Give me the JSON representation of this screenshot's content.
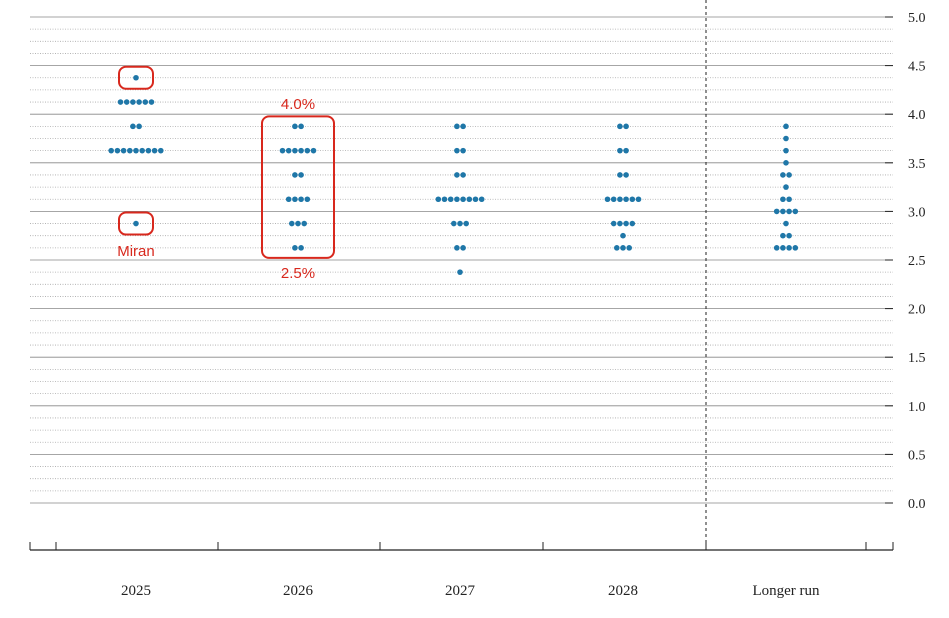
{
  "chart_data": {
    "type": "scatter",
    "title": "",
    "xlabel": "",
    "ylabel": "",
    "ylim": [
      0,
      5
    ],
    "y_ticks": [
      "0.0",
      "0.5",
      "1.0",
      "1.5",
      "2.0",
      "2.5",
      "3.0",
      "3.5",
      "4.0",
      "4.5",
      "5.0"
    ],
    "y_axis_side": "right",
    "gridlines": "dotted every 0.125, solid every 0.5",
    "categories": [
      "2025",
      "2026",
      "2027",
      "2028",
      "Longer run"
    ],
    "dot_color": "#1f77a8",
    "highlight_color": "#d8281d",
    "dots": [
      {
        "category": "2025",
        "groups": [
          {
            "rate": 4.375,
            "count": 1
          },
          {
            "rate": 4.125,
            "count": 6
          },
          {
            "rate": 3.875,
            "count": 2
          },
          {
            "rate": 3.625,
            "count": 9
          },
          {
            "rate": 2.875,
            "count": 1
          }
        ]
      },
      {
        "category": "2026",
        "groups": [
          {
            "rate": 3.875,
            "count": 2
          },
          {
            "rate": 3.625,
            "count": 6
          },
          {
            "rate": 3.375,
            "count": 2
          },
          {
            "rate": 3.125,
            "count": 4
          },
          {
            "rate": 2.875,
            "count": 3
          },
          {
            "rate": 2.625,
            "count": 2
          }
        ]
      },
      {
        "category": "2027",
        "groups": [
          {
            "rate": 3.875,
            "count": 2
          },
          {
            "rate": 3.625,
            "count": 2
          },
          {
            "rate": 3.375,
            "count": 2
          },
          {
            "rate": 3.125,
            "count": 8
          },
          {
            "rate": 2.875,
            "count": 3
          },
          {
            "rate": 2.625,
            "count": 2
          },
          {
            "rate": 2.375,
            "count": 1
          }
        ]
      },
      {
        "category": "2028",
        "groups": [
          {
            "rate": 3.875,
            "count": 2
          },
          {
            "rate": 3.625,
            "count": 2
          },
          {
            "rate": 3.375,
            "count": 2
          },
          {
            "rate": 3.125,
            "count": 6
          },
          {
            "rate": 2.875,
            "count": 4
          },
          {
            "rate": 2.75,
            "count": 1
          },
          {
            "rate": 2.625,
            "count": 3
          }
        ]
      },
      {
        "category": "Longer run",
        "groups": [
          {
            "rate": 3.875,
            "count": 1
          },
          {
            "rate": 3.75,
            "count": 1
          },
          {
            "rate": 3.625,
            "count": 1
          },
          {
            "rate": 3.5,
            "count": 1
          },
          {
            "rate": 3.375,
            "count": 2
          },
          {
            "rate": 3.25,
            "count": 1
          },
          {
            "rate": 3.125,
            "count": 2
          },
          {
            "rate": 3.0,
            "count": 4
          },
          {
            "rate": 2.875,
            "count": 1
          },
          {
            "rate": 2.75,
            "count": 2
          },
          {
            "rate": 2.625,
            "count": 4
          }
        ]
      }
    ],
    "annotations": {
      "top_label": "4.0%",
      "bottom_label": "2.5%",
      "miran_label": "Miran"
    }
  }
}
